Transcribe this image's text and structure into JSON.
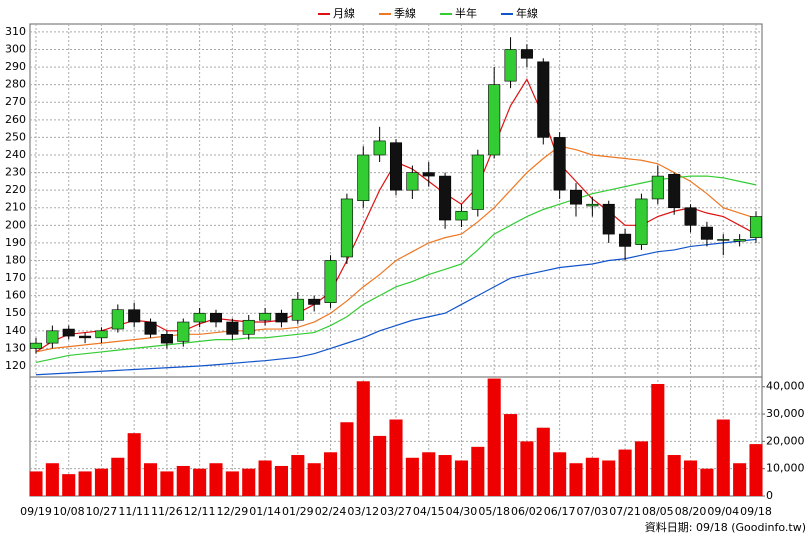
{
  "chart_data": {
    "type": "candlestick",
    "x": [
      "09/19",
      null,
      "10/08",
      null,
      "10/27",
      null,
      "11/11",
      null,
      "11/26",
      null,
      "12/11",
      null,
      "12/29",
      null,
      "01/14",
      null,
      "01/29",
      null,
      "02/24",
      null,
      "03/12",
      null,
      "03/27",
      null,
      "04/15",
      null,
      "04/30",
      null,
      "05/18",
      null,
      "06/02",
      null,
      "06/17",
      null,
      "07/03",
      null,
      "07/21",
      null,
      "08/05",
      null,
      "08/20",
      null,
      "09/04",
      null,
      "09/18"
    ],
    "open": [
      130,
      133,
      141,
      137,
      136,
      141,
      152,
      145,
      138,
      134,
      145,
      150,
      145,
      138,
      146,
      150,
      146,
      158,
      156,
      182,
      214,
      240,
      247,
      220,
      230,
      228,
      203,
      209,
      240,
      282,
      300,
      293,
      250,
      220,
      211,
      212,
      195,
      189,
      215,
      229,
      210,
      199,
      192,
      191,
      193
    ],
    "high": [
      136,
      143,
      143,
      139,
      142,
      155,
      156,
      147,
      140,
      147,
      153,
      152,
      147,
      149,
      153,
      152,
      162,
      160,
      183,
      218,
      245,
      256,
      249,
      234,
      236,
      230,
      212,
      243,
      290,
      307,
      303,
      295,
      253,
      224,
      216,
      214,
      198,
      218,
      234,
      230,
      212,
      202,
      195,
      195,
      208
    ],
    "low": [
      127,
      130,
      135,
      133,
      133,
      139,
      142,
      136,
      130,
      131,
      142,
      142,
      135,
      135,
      143,
      142,
      144,
      151,
      153,
      178,
      210,
      236,
      217,
      215,
      222,
      198,
      199,
      205,
      238,
      278,
      290,
      246,
      215,
      205,
      205,
      190,
      180,
      186,
      212,
      206,
      196,
      188,
      183,
      188,
      190
    ],
    "close": [
      133,
      140,
      137,
      136,
      140,
      152,
      145,
      138,
      133,
      145,
      150,
      145,
      138,
      146,
      150,
      145,
      158,
      155,
      180,
      215,
      240,
      248,
      220,
      230,
      228,
      203,
      208,
      240,
      280,
      300,
      295,
      250,
      220,
      212,
      212,
      195,
      188,
      215,
      228,
      210,
      200,
      192,
      192,
      192,
      205
    ],
    "up_color": "#33cc33",
    "down_color": "#111111",
    "ylim": [
      114.3,
      314.5
    ],
    "yticks": [
      120,
      130,
      140,
      150,
      160,
      170,
      180,
      190,
      200,
      210,
      220,
      230,
      240,
      250,
      260,
      270,
      280,
      290,
      300,
      310
    ],
    "grid": true,
    "legend": "top",
    "lines": [
      {
        "name": "月線",
        "color": "#dd1111",
        "values": [
          128,
          134,
          138,
          139,
          140,
          143,
          146,
          145,
          140,
          140,
          144,
          147,
          146,
          145,
          145,
          146,
          150,
          155,
          162,
          180,
          200,
          220,
          236,
          232,
          225,
          218,
          212,
          222,
          245,
          268,
          283,
          262,
          235,
          225,
          215,
          208,
          200,
          200,
          205,
          208,
          210,
          207,
          205,
          200,
          195
        ]
      },
      {
        "name": "季線",
        "color": "#ee7722",
        "values": [
          128,
          130,
          131,
          132,
          133,
          134,
          135,
          136,
          137,
          138,
          138,
          139,
          140,
          140,
          141,
          141,
          142,
          145,
          150,
          157,
          165,
          172,
          180,
          185,
          190,
          193,
          195,
          202,
          210,
          220,
          230,
          238,
          245,
          243,
          240,
          239,
          238,
          237,
          235,
          230,
          225,
          218,
          210,
          207,
          204
        ]
      },
      {
        "name": "半年",
        "color": "#33cc33",
        "values": [
          122,
          124,
          126,
          127,
          128,
          129,
          130,
          131,
          132,
          133,
          134,
          135,
          135,
          136,
          136,
          137,
          138,
          139,
          143,
          148,
          155,
          160,
          165,
          168,
          172,
          175,
          178,
          186,
          195,
          200,
          205,
          209,
          212,
          215,
          218,
          220,
          222,
          224,
          226,
          227,
          228,
          228,
          227,
          225,
          223
        ]
      },
      {
        "name": "年線",
        "color": "#1155cc",
        "values": [
          115,
          115.5,
          116,
          116.5,
          117,
          117.5,
          118,
          118.5,
          119,
          119.5,
          120,
          120.7,
          121.5,
          122.3,
          123,
          124,
          125,
          127,
          130,
          133,
          136,
          140,
          143,
          146,
          148,
          150,
          155,
          160,
          165,
          170,
          172,
          174,
          176,
          177,
          178,
          180,
          181,
          183,
          185,
          186,
          188,
          189,
          190,
          191,
          192
        ]
      }
    ],
    "volume": {
      "color": "#ee0000",
      "values": [
        9000,
        12000,
        8000,
        9000,
        10000,
        14000,
        23000,
        12000,
        9000,
        11000,
        10000,
        12000,
        9000,
        10000,
        13000,
        11000,
        15000,
        12000,
        16000,
        27000,
        42000,
        22000,
        28000,
        14000,
        16000,
        15000,
        13000,
        18000,
        43000,
        30000,
        20000,
        25000,
        16000,
        12000,
        14000,
        13000,
        17000,
        20000,
        41000,
        15000,
        13000,
        10000,
        28000,
        12000,
        19000
      ],
      "ylim": [
        0,
        43200
      ],
      "yticks": [
        0,
        {
          "value": 10000,
          "label": "10,000"
        },
        {
          "value": 20000,
          "label": "20,000"
        },
        {
          "value": 30000,
          "label": "30,000"
        },
        {
          "value": 40000,
          "label": "40,000"
        }
      ]
    },
    "footer": "資料日期: 09/18 (Goodinfo.tw)"
  }
}
